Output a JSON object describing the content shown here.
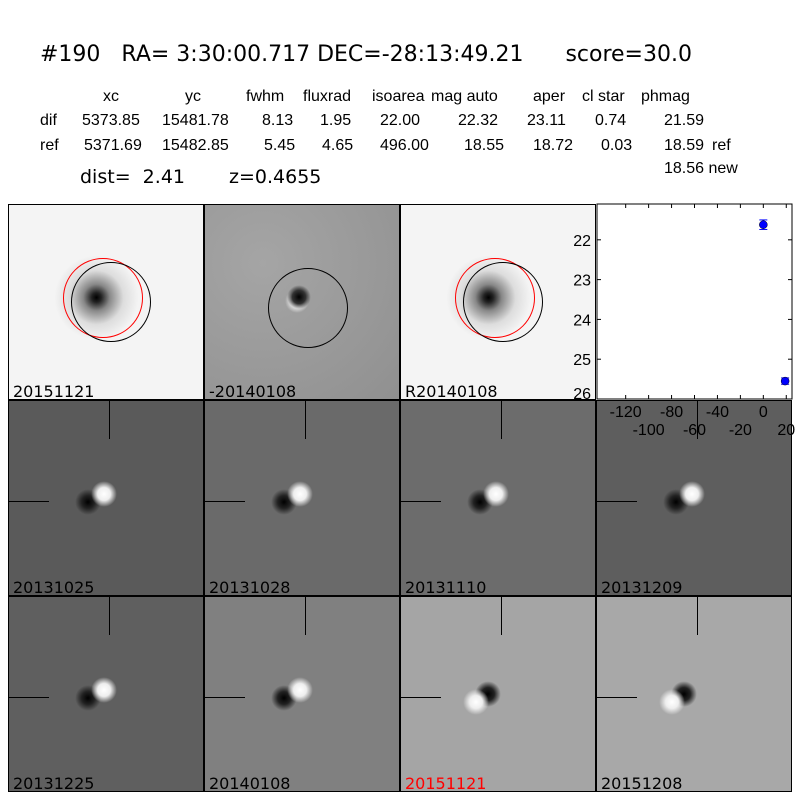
{
  "title": {
    "id": "#190",
    "ra": "RA= 3:30:00.717",
    "dec": "DEC=-28:13:49.21",
    "score": "score=30.0"
  },
  "table": {
    "columns": [
      "xc",
      "yc",
      "fwhm",
      "fluxrad",
      "isoarea",
      "mag auto",
      "aper",
      "cl star",
      "phmag"
    ],
    "rows": [
      {
        "label": "dif",
        "values": [
          "5373.85",
          "15481.78",
          "8.13",
          "1.95",
          "22.00",
          "22.32",
          "23.11",
          "0.74",
          "21.59"
        ],
        "suffix": ""
      },
      {
        "label": "ref",
        "values": [
          "5371.69",
          "15482.85",
          "5.45",
          "4.65",
          "496.00",
          "18.55",
          "18.72",
          "0.03",
          "18.59"
        ],
        "suffix": "ref"
      }
    ],
    "new_phmag": "18.56 new",
    "dist": "dist=  2.41",
    "z": "z=0.4655"
  },
  "stamps_top": [
    {
      "label": "20151121",
      "bg": "#f4f4f4"
    },
    {
      "label": "-20140108",
      "bg": "#9a9a9a"
    },
    {
      "label": "R20140108",
      "bg": "#f4f4f4"
    }
  ],
  "stamps_grid": [
    {
      "label": "20131025",
      "bg": "#5a5a5a",
      "label_color": "#000000"
    },
    {
      "label": "20131028",
      "bg": "#6a6a6a",
      "label_color": "#000000"
    },
    {
      "label": "20131110",
      "bg": "#6c6c6c",
      "label_color": "#000000"
    },
    {
      "label": "20131209",
      "bg": "#5e5e5e",
      "label_color": "#000000"
    },
    {
      "label": "20131225",
      "bg": "#5f5f5f",
      "label_color": "#000000"
    },
    {
      "label": "20140108",
      "bg": "#808080",
      "label_color": "#000000"
    },
    {
      "label": "20151121",
      "bg": "#a5a5a5",
      "label_color": "#ff0000"
    },
    {
      "label": "20151208",
      "bg": "#a8a8a8",
      "label_color": "#000000"
    }
  ],
  "chart_data": {
    "type": "scatter",
    "x": [
      0,
      19
    ],
    "y": [
      21.62,
      25.55
    ],
    "yerr": [
      0.12,
      0.08
    ],
    "xlim": [
      -145,
      25
    ],
    "ylim": [
      26,
      21.1
    ],
    "y_inverted": true,
    "xticks": [
      "-120",
      "-100",
      "-80",
      "-60",
      "-40",
      "-20",
      "0",
      "20"
    ],
    "yticks": [
      "22",
      "23",
      "24",
      "25",
      "26"
    ],
    "color": "#0000ff"
  }
}
